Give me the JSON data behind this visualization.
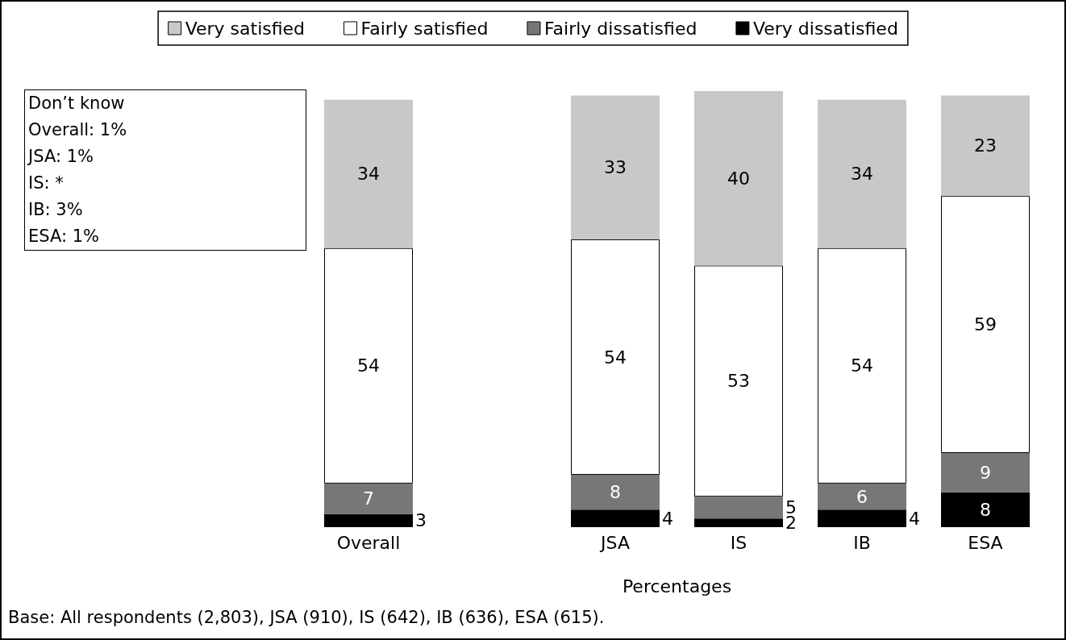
{
  "chart_data": {
    "type": "bar",
    "stacked": true,
    "data_labels": true,
    "legend": "top",
    "grid": false,
    "xlabel": "Percentages",
    "categories": [
      "Overall",
      null,
      "JSA",
      "IS",
      "IB",
      "ESA"
    ],
    "series": [
      {
        "name": "Very dissatisfied",
        "color": "#000000",
        "values": [
          3,
          null,
          4,
          2,
          4,
          8
        ]
      },
      {
        "name": "Fairly dissatisfied",
        "color": "#777777",
        "values": [
          7,
          null,
          8,
          5,
          6,
          9
        ]
      },
      {
        "name": "Fairly satisfied",
        "color": "#ffffff",
        "values": [
          54,
          null,
          54,
          53,
          54,
          59
        ]
      },
      {
        "name": "Very satisfied",
        "color": "#c8c8c8",
        "values": [
          34,
          null,
          33,
          40,
          34,
          23
        ]
      }
    ],
    "annotations": [
      "Don’t know",
      "Overall: 1%",
      "JSA: 1%",
      "IS: *",
      "IB: 3%",
      "ESA: 1%",
      "Base: All respondents (2,803), JSA (910), IS (642), IB (636), ESA (615)."
    ]
  }
}
